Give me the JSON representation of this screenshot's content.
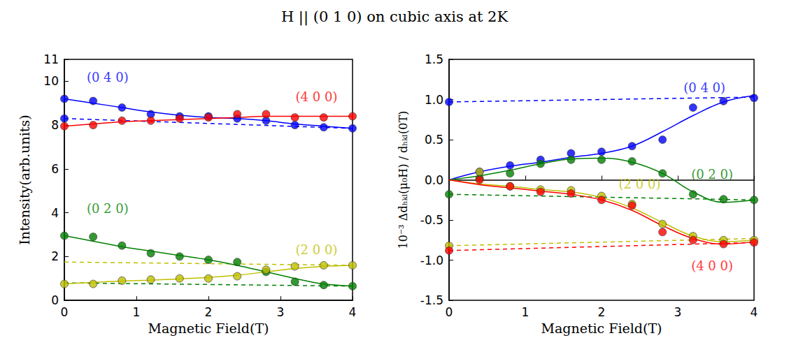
{
  "title": "H || (0 1 0) on cubic axis at 2K",
  "chart_data": [
    {
      "type": "scatter",
      "x_label": "Magnetic Field(T)",
      "y_label": "Intensity(arb.units)",
      "xlim": [
        0,
        4
      ],
      "xticks": [
        0,
        1,
        2,
        3,
        4
      ],
      "ylim": [
        0,
        11
      ],
      "yticks": [
        0,
        2,
        4,
        6,
        8,
        10
      ],
      "marker": "circle",
      "series": [
        {
          "name": "(0 4 0)",
          "color": "#0000ff",
          "x": [
            0,
            0,
            0.4,
            0.8,
            1.2,
            1.6,
            2.0,
            2.4,
            2.8,
            3.2,
            3.6,
            4.0
          ],
          "values": [
            9.2,
            8.3,
            9.1,
            8.8,
            8.5,
            8.4,
            8.4,
            8.3,
            8.2,
            8.0,
            7.9,
            7.85
          ],
          "fit_x": [
            0,
            0.4,
            0.8,
            1.2,
            1.6,
            2.0,
            2.4,
            2.8,
            3.2,
            3.6,
            4.0
          ],
          "fit": [
            9.2,
            9.0,
            8.8,
            8.6,
            8.45,
            8.35,
            8.3,
            8.2,
            8.05,
            7.95,
            7.85
          ],
          "dashed_x": [
            0,
            4
          ],
          "dashed": [
            8.3,
            7.85
          ]
        },
        {
          "name": "(4 0 0)",
          "color": "#ff0000",
          "x": [
            0,
            0.4,
            0.8,
            1.2,
            1.6,
            2.0,
            2.4,
            2.8,
            3.2,
            3.6,
            4.0
          ],
          "values": [
            7.95,
            8.0,
            8.2,
            8.2,
            8.3,
            8.35,
            8.5,
            8.5,
            8.35,
            8.35,
            8.4
          ],
          "fit_x": [
            0,
            0.4,
            0.8,
            1.2,
            1.6,
            2.0,
            2.4,
            2.8,
            3.2,
            3.6,
            4.0
          ],
          "fit": [
            7.95,
            8.05,
            8.15,
            8.2,
            8.25,
            8.3,
            8.35,
            8.4,
            8.4,
            8.4,
            8.4
          ],
          "dashed_x": [],
          "dashed": []
        },
        {
          "name": "(0 2 0)",
          "color": "#008000",
          "x": [
            0,
            0.4,
            0.8,
            1.2,
            1.6,
            2.0,
            2.4,
            2.8,
            3.2,
            3.6,
            4.0
          ],
          "values": [
            2.95,
            2.9,
            2.5,
            2.15,
            2.0,
            1.85,
            1.75,
            1.3,
            0.85,
            0.7,
            0.65
          ],
          "fit_x": [
            0,
            0.4,
            0.8,
            1.2,
            1.6,
            2.0,
            2.4,
            2.8,
            3.2,
            3.6,
            4.0
          ],
          "fit": [
            2.95,
            2.7,
            2.45,
            2.25,
            2.05,
            1.85,
            1.6,
            1.3,
            1.0,
            0.75,
            0.65
          ],
          "dashed_x": [
            0,
            4
          ],
          "dashed": [
            0.8,
            0.65
          ]
        },
        {
          "name": "(2 0 0)",
          "color": "#bfbf00",
          "x": [
            0,
            0.4,
            0.8,
            1.2,
            1.6,
            2.0,
            2.4,
            2.8,
            3.2,
            3.6,
            4.0
          ],
          "values": [
            0.75,
            0.75,
            0.9,
            0.95,
            1.0,
            1.0,
            1.1,
            1.4,
            1.55,
            1.6,
            1.6
          ],
          "fit_x": [
            0,
            0.4,
            0.8,
            1.2,
            1.6,
            2.0,
            2.4,
            2.8,
            3.2,
            3.6,
            4.0
          ],
          "fit": [
            0.75,
            0.82,
            0.88,
            0.92,
            0.98,
            1.05,
            1.15,
            1.3,
            1.45,
            1.55,
            1.6
          ],
          "dashed_x": [
            0,
            4
          ],
          "dashed": [
            1.75,
            1.6
          ]
        }
      ],
      "annotations": [
        {
          "text": "(0 4 0)",
          "x": 0.6,
          "y": 10.2,
          "color": "#0000ff"
        },
        {
          "text": "(4 0 0)",
          "x": 3.5,
          "y": 9.3,
          "color": "#ff0000"
        },
        {
          "text": "(0 2 0)",
          "x": 0.6,
          "y": 4.2,
          "color": "#008000"
        },
        {
          "text": "(2 0 0)",
          "x": 3.5,
          "y": 2.3,
          "color": "#bfbf00"
        }
      ]
    },
    {
      "type": "scatter",
      "x_label": "Magnetic Field(T)",
      "y_label": "10⁻³ Δdₕₖₗ(μ₀H) / dₕₖₗ(0T)",
      "xlim": [
        0,
        4
      ],
      "xticks": [
        0,
        1,
        2,
        3,
        4
      ],
      "ylim": [
        -1.5,
        1.5
      ],
      "yticks": [
        -1.5,
        -1.0,
        -0.5,
        0.0,
        0.5,
        1.0,
        1.5
      ],
      "marker": "circle",
      "series": [
        {
          "name": "(0 4 0)",
          "color": "#0000ff",
          "x": [
            0,
            0.4,
            0.8,
            1.2,
            1.6,
            2.0,
            2.4,
            2.8,
            3.2,
            3.6,
            4.0
          ],
          "values": [
            0.97,
            0.1,
            0.18,
            0.25,
            0.33,
            0.35,
            0.42,
            0.5,
            0.9,
            0.98,
            1.02
          ],
          "fit_x": [
            0,
            0.4,
            0.8,
            1.2,
            1.6,
            2.0,
            2.4,
            2.8,
            3.2,
            3.6,
            4.0
          ],
          "fit": [
            0,
            0.1,
            0.17,
            0.22,
            0.28,
            0.33,
            0.42,
            0.6,
            0.8,
            0.97,
            1.05
          ],
          "dashed_x": [
            0,
            4
          ],
          "dashed": [
            0.97,
            1.03
          ]
        },
        {
          "name": "(0 2 0)",
          "color": "#008000",
          "x": [
            0,
            0.4,
            0.8,
            1.2,
            1.6,
            2.0,
            2.4,
            2.8,
            3.2,
            3.6,
            4.0
          ],
          "values": [
            -0.18,
            0.02,
            0.08,
            0.2,
            0.25,
            0.25,
            0.23,
            0.08,
            -0.18,
            -0.24,
            -0.25
          ],
          "fit_x": [
            0,
            0.4,
            0.8,
            1.2,
            1.6,
            2.0,
            2.4,
            2.8,
            3.2,
            3.6,
            4.0
          ],
          "fit": [
            0,
            0.05,
            0.12,
            0.2,
            0.26,
            0.27,
            0.22,
            0.08,
            -0.15,
            -0.28,
            -0.25
          ],
          "dashed_x": [
            0,
            4
          ],
          "dashed": [
            -0.18,
            -0.25
          ]
        },
        {
          "name": "(2 0 0)",
          "color": "#bfbf00",
          "x": [
            0,
            0.4,
            0.8,
            1.2,
            1.6,
            2.0,
            2.4,
            2.8,
            3.2,
            3.6,
            4.0
          ],
          "values": [
            -0.82,
            0.1,
            -0.08,
            -0.12,
            -0.13,
            -0.2,
            -0.3,
            -0.55,
            -0.7,
            -0.75,
            -0.75
          ],
          "fit_x": [
            0,
            0.4,
            0.8,
            1.2,
            1.6,
            2.0,
            2.4,
            2.8,
            3.2,
            3.6,
            4.0
          ],
          "fit": [
            0,
            -0.05,
            -0.08,
            -0.12,
            -0.15,
            -0.22,
            -0.35,
            -0.53,
            -0.7,
            -0.77,
            -0.75
          ],
          "dashed_x": [
            0,
            4
          ],
          "dashed": [
            -0.82,
            -0.73
          ]
        },
        {
          "name": "(4 0 0)",
          "color": "#ff0000",
          "x": [
            0,
            0.4,
            0.8,
            1.2,
            1.6,
            2.0,
            2.4,
            2.8,
            3.2,
            3.6,
            4.0
          ],
          "values": [
            -0.88,
            0.0,
            -0.08,
            -0.15,
            -0.17,
            -0.25,
            -0.32,
            -0.65,
            -0.75,
            -0.8,
            -0.78
          ],
          "fit_x": [
            0,
            0.4,
            0.8,
            1.2,
            1.6,
            2.0,
            2.4,
            2.8,
            3.2,
            3.6,
            4.0
          ],
          "fit": [
            0,
            -0.06,
            -0.1,
            -0.14,
            -0.18,
            -0.25,
            -0.38,
            -0.57,
            -0.73,
            -0.8,
            -0.77
          ],
          "dashed_x": [
            0,
            4
          ],
          "dashed": [
            -0.88,
            -0.78
          ]
        }
      ],
      "annotations": [
        {
          "text": "(0 4 0)",
          "x": 3.35,
          "y": 1.15,
          "color": "#0000ff"
        },
        {
          "text": "(0 2 0)",
          "x": 3.45,
          "y": 0.07,
          "color": "#008000"
        },
        {
          "text": "(2 0 0)",
          "x": 2.5,
          "y": -0.05,
          "color": "#bfbf00"
        },
        {
          "text": "(4 0 0)",
          "x": 3.45,
          "y": -1.07,
          "color": "#ff0000"
        }
      ]
    }
  ]
}
